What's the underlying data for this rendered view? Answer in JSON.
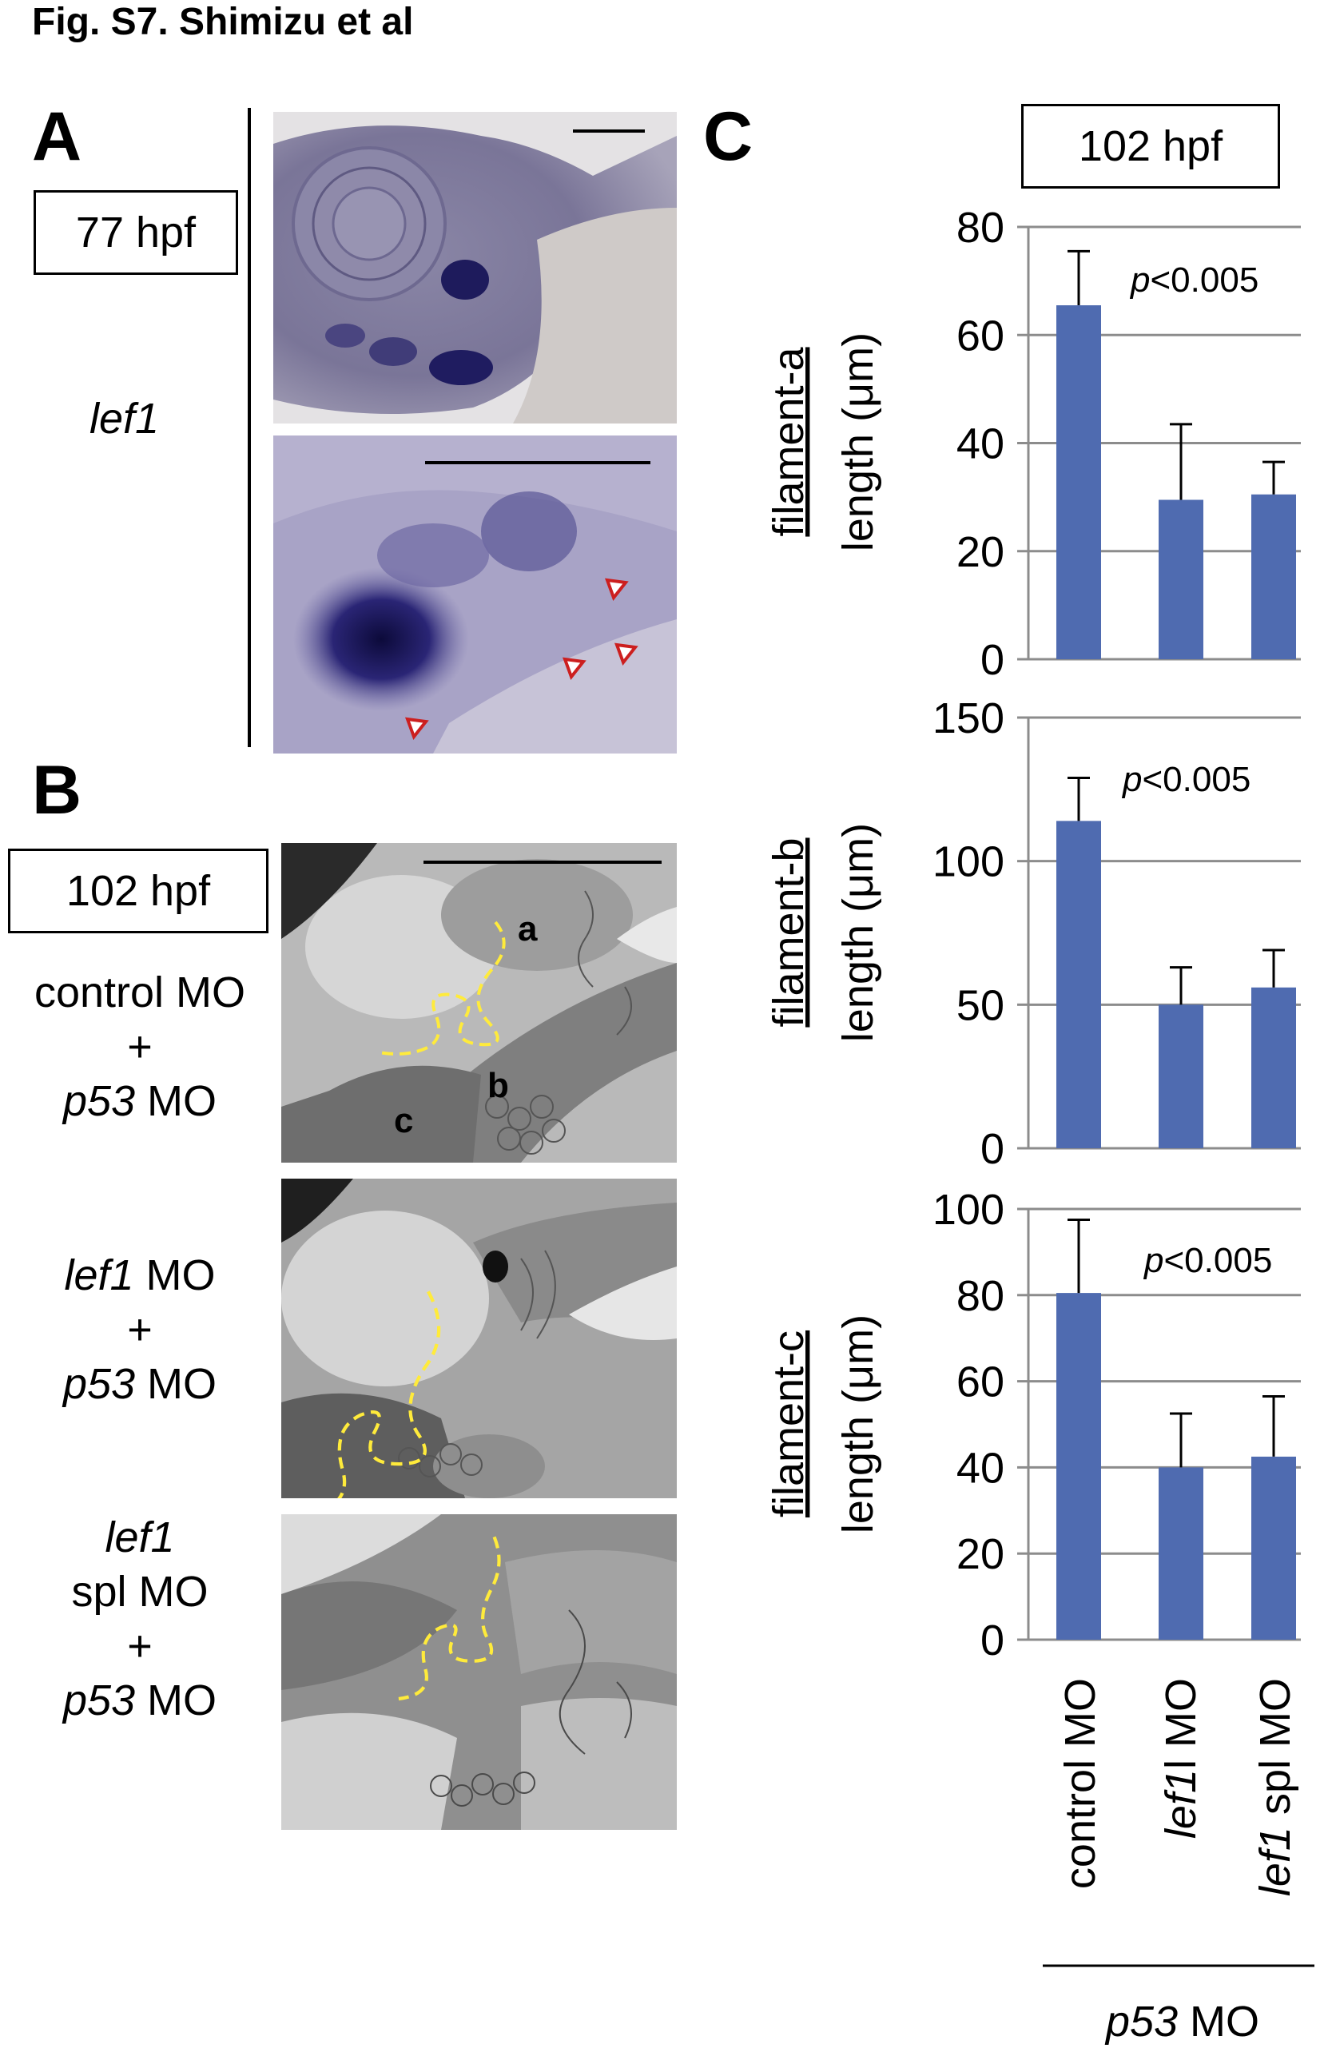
{
  "figure_title": "Fig. S7. Shimizu et al",
  "panelA": {
    "letter": "A",
    "stage": "77 hpf",
    "gene": "lef1"
  },
  "panelB": {
    "letter": "B",
    "stage": "102 hpf",
    "rows": [
      {
        "line1": "control MO",
        "line2": "+",
        "line3": "p53",
        "line3b": " MO"
      },
      {
        "line1": "lef1",
        "line1b": " MO",
        "line2": "+",
        "line3": "p53",
        "line3b": " MO"
      },
      {
        "line1": "lef1",
        "line1b": "spl MO",
        "line2": "+",
        "line3": "p53",
        "line3b": " MO"
      }
    ],
    "filament_labels": {
      "a": "a",
      "b": "b",
      "c": "c"
    }
  },
  "panelC": {
    "letter": "C",
    "stage": "102 hpf",
    "x_categories": [
      {
        "it": "",
        "rest": "control MO"
      },
      {
        "it": "lef1",
        "rest": "l MO"
      },
      {
        "it": "lef1",
        "rest": " spl MO"
      }
    ],
    "group_label": {
      "it": "p53",
      "rest": " MO"
    }
  },
  "chart_data": [
    {
      "type": "bar",
      "categories": [
        "control MO",
        "lef1l MO",
        "lef1 spl MO"
      ],
      "values": [
        65.5,
        29.5,
        30.5
      ],
      "errors": [
        10,
        14,
        6
      ],
      "ylim": [
        0,
        80
      ],
      "yticks": [
        "0",
        "20",
        "40",
        "60",
        "80"
      ],
      "ylabel_top": "filament-a",
      "ylabel_bottom": "length (μm)",
      "annotation_it": "p",
      "annotation_rest": "<0.005",
      "bar_color": "#4f6bb0"
    },
    {
      "type": "bar",
      "categories": [
        "control MO",
        "lef1l MO",
        "lef1 spl MO"
      ],
      "values": [
        114,
        50,
        56
      ],
      "errors": [
        15,
        13,
        13
      ],
      "ylim": [
        0,
        150
      ],
      "yticks": [
        "0",
        "50",
        "100",
        "150"
      ],
      "ylabel_top": "filament-b",
      "ylabel_bottom": "length (μm)",
      "annotation_it": "p",
      "annotation_rest": "<0.005",
      "bar_color": "#4f6bb0"
    },
    {
      "type": "bar",
      "categories": [
        "control MO",
        "lef1l MO",
        "lef1 spl MO"
      ],
      "values": [
        80.5,
        40,
        42.5
      ],
      "errors": [
        17,
        12.5,
        14
      ],
      "ylim": [
        0,
        100
      ],
      "yticks": [
        "0",
        "20",
        "40",
        "60",
        "80",
        "100"
      ],
      "ylabel_top": "filament-c",
      "ylabel_bottom": "length (μm)",
      "annotation_it": "p",
      "annotation_rest": "<0.005",
      "bar_color": "#4f6bb0"
    }
  ]
}
